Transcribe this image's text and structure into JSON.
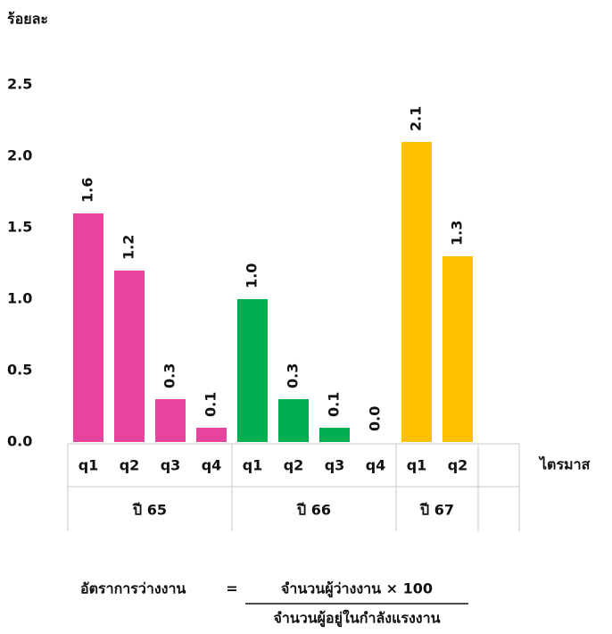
{
  "chart_data": {
    "type": "bar",
    "y_axis_label": "ร้อยละ",
    "x_axis_label": "ไตรมาส",
    "ylim": [
      0,
      2.5
    ],
    "yticks": [
      {
        "value": 0,
        "label": "0.0"
      },
      0.5,
      {
        "value": 1,
        "label": "1.0"
      },
      1.5,
      {
        "value": 2,
        "label": "2.0"
      },
      2.5
    ],
    "series": [
      {
        "name": "ปี 65",
        "color": "#e6449e",
        "categories": [
          "q1",
          "q2",
          "q3",
          "q4"
        ],
        "values": [
          1.6,
          1.2,
          0.3,
          0.1
        ],
        "value_labels": [
          "1.6",
          "1.2",
          "0.3",
          "0.1"
        ]
      },
      {
        "name": "ปี 66",
        "color": "#00b050",
        "categories": [
          "q1",
          "q2",
          "q3",
          "q4"
        ],
        "values": [
          1,
          0.3,
          0.1,
          0
        ],
        "value_labels": [
          "1.0",
          "0.3",
          "0.1",
          "0.0"
        ]
      },
      {
        "name": "ปี 67",
        "color": "#ffc000",
        "categories": [
          "q1",
          "q2"
        ],
        "values": [
          2.1,
          1.3
        ],
        "value_labels": [
          "2.1",
          "1.3"
        ]
      }
    ]
  },
  "formula": {
    "left": "อัตราการว่างงาน",
    "equals": "=",
    "numerator": "จำนวนผู้ว่างงาน × 100",
    "denominator": "จำนวนผู้อยู่ในกำลังแรงงาน"
  }
}
